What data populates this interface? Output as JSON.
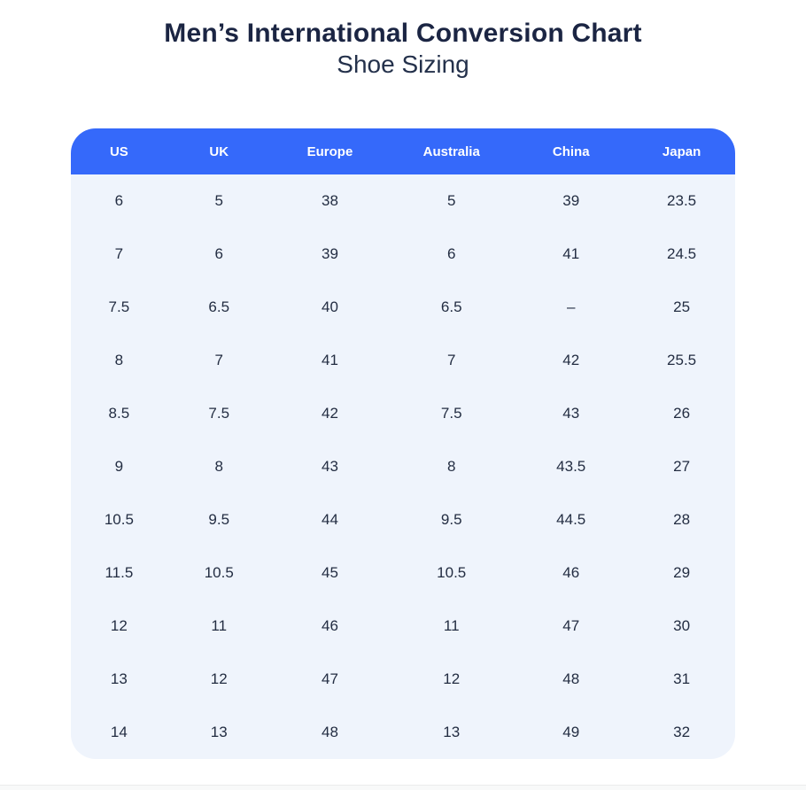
{
  "page": {
    "title": "Men’s International Conversion Chart",
    "subtitle": "Shoe Sizing"
  },
  "colors": {
    "header_bg": "#3569fa",
    "header_text": "#ffffff",
    "body_bg": "#eff4fc",
    "title_text": "#1b2543",
    "subtitle_text": "#24314b",
    "cell_text": "#232d42",
    "footer_strip_bg": "#f8f9f9",
    "footer_strip_border": "#ebecec"
  },
  "chart_data": {
    "type": "table",
    "title": "Men’s International Conversion Chart",
    "subtitle": "Shoe Sizing",
    "columns": [
      "US",
      "UK",
      "Europe",
      "Australia",
      "China",
      "Japan"
    ],
    "rows": [
      [
        "6",
        "5",
        "38",
        "5",
        "39",
        "23.5"
      ],
      [
        "7",
        "6",
        "39",
        "6",
        "41",
        "24.5"
      ],
      [
        "7.5",
        "6.5",
        "40",
        "6.5",
        "–",
        "25"
      ],
      [
        "8",
        "7",
        "41",
        "7",
        "42",
        "25.5"
      ],
      [
        "8.5",
        "7.5",
        "42",
        "7.5",
        "43",
        "26"
      ],
      [
        "9",
        "8",
        "43",
        "8",
        "43.5",
        "27"
      ],
      [
        "10.5",
        "9.5",
        "44",
        "9.5",
        "44.5",
        "28"
      ],
      [
        "11.5",
        "10.5",
        "45",
        "10.5",
        "46",
        "29"
      ],
      [
        "12",
        "11",
        "46",
        "11",
        "47",
        "30"
      ],
      [
        "13",
        "12",
        "47",
        "12",
        "48",
        "31"
      ],
      [
        "14",
        "13",
        "48",
        "13",
        "49",
        "32"
      ]
    ]
  }
}
